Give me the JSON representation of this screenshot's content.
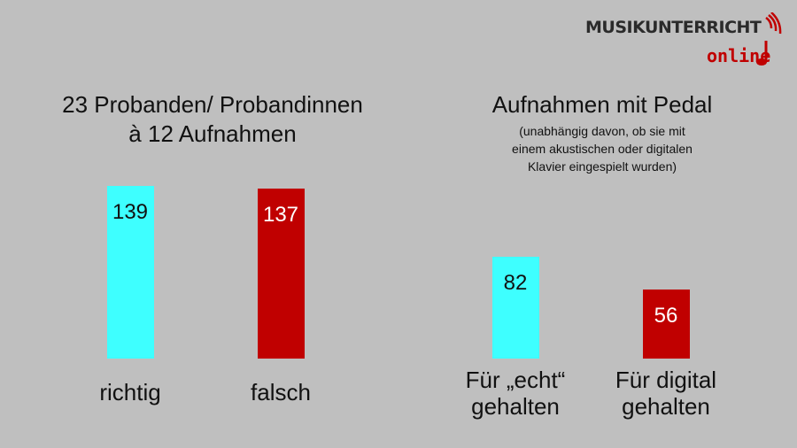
{
  "logo": {
    "main": "MUSIKUNTERRICHT",
    "sub": "online",
    "colors": {
      "dark": "#2b2b2b",
      "accent": "#c00000"
    }
  },
  "chart_data": [
    {
      "type": "bar",
      "title": [
        "23 Probanden/ Probandinnen",
        "à 12 Aufnahmen"
      ],
      "subtitle": [],
      "categories": [
        "richtig",
        "falsch"
      ],
      "values": [
        139,
        137
      ],
      "colors": [
        "#3effff",
        "#c00000"
      ],
      "grid": false,
      "legend": "none"
    },
    {
      "type": "bar",
      "title": [
        "Aufnahmen mit Pedal"
      ],
      "subtitle": [
        "(unabhängig davon, ob sie mit",
        "einem akustischen oder digitalen",
        "Klavier eingespielt wurden)"
      ],
      "categories": [
        [
          "Für „echt“",
          "gehalten"
        ],
        [
          "Für digital",
          "gehalten"
        ]
      ],
      "values": [
        82,
        56
      ],
      "colors": [
        "#3effff",
        "#c00000"
      ],
      "grid": false,
      "legend": "none"
    }
  ]
}
